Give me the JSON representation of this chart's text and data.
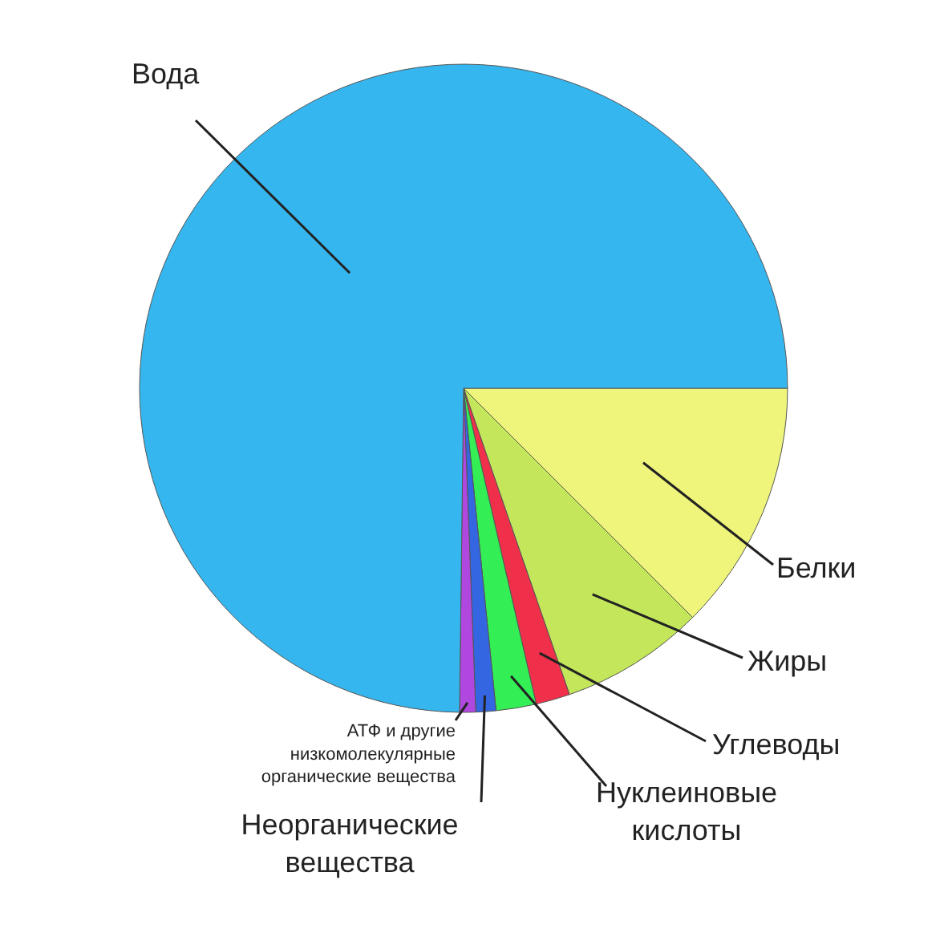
{
  "chart_data": {
    "type": "pie",
    "categories": [
      "Белки",
      "Жиры",
      "Углеводы",
      "Нуклеиновые кислоты",
      "Неорганические вещества",
      "АТФ и другие низкомолекулярные органические вещества",
      "Вода"
    ],
    "values": [
      12.5,
      7.2,
      1.7,
      2,
      1,
      0.8,
      74.8
    ],
    "colors": [
      "#eef57a",
      "#c3e65a",
      "#f0304a",
      "#33ee55",
      "#3366e0",
      "#b048e0",
      "#36b6ee"
    ]
  }
}
